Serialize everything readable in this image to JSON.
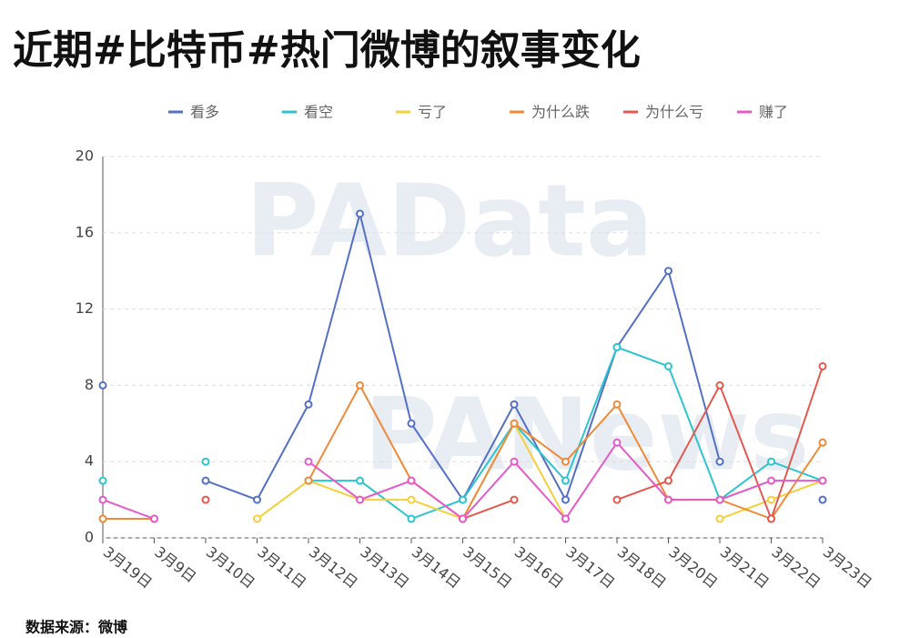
{
  "chart_data": {
    "type": "line",
    "title": "近期#比特币#热门微博的叙事变化",
    "categories": [
      "3月19日",
      "3月9日",
      "3月10日",
      "3月11日",
      "3月12日",
      "3月13日",
      "3月14日",
      "3月15日",
      "3月16日",
      "3月17日",
      "3月18日",
      "3月20日",
      "3月21日",
      "3月22日",
      "3月23日"
    ],
    "series": [
      {
        "name": "看多",
        "color": "#5470c6",
        "values": [
          8,
          null,
          3,
          2,
          7,
          17,
          6,
          2,
          7,
          2,
          10,
          14,
          4,
          null,
          2
        ]
      },
      {
        "name": "看空",
        "color": "#2ec4cf",
        "values": [
          3,
          null,
          4,
          null,
          3,
          3,
          1,
          2,
          6,
          3,
          10,
          9,
          2,
          4,
          3
        ]
      },
      {
        "name": "亏了",
        "color": "#f5cf3c",
        "values": [
          1,
          1,
          null,
          1,
          3,
          2,
          2,
          1,
          6,
          1,
          null,
          null,
          1,
          2,
          3
        ]
      },
      {
        "name": "为什么跌",
        "color": "#ee8a3a",
        "values": [
          1,
          1,
          null,
          null,
          3,
          8,
          3,
          1,
          6,
          4,
          7,
          2,
          2,
          1,
          5
        ]
      },
      {
        "name": "为什么亏",
        "color": "#e5584f",
        "values": [
          null,
          null,
          2,
          null,
          null,
          null,
          null,
          1,
          2,
          null,
          2,
          3,
          8,
          1,
          9
        ]
      },
      {
        "name": "赚了",
        "color": "#e45bc8",
        "values": [
          2,
          1,
          null,
          null,
          4,
          2,
          3,
          1,
          4,
          1,
          5,
          2,
          2,
          3,
          3
        ]
      }
    ],
    "ylim": [
      0,
      20
    ],
    "yticks": [
      0,
      4,
      8,
      12,
      16,
      20
    ],
    "grid": true,
    "watermarks": [
      "PAData",
      "PANews"
    ],
    "source": "数据来源：微博"
  }
}
